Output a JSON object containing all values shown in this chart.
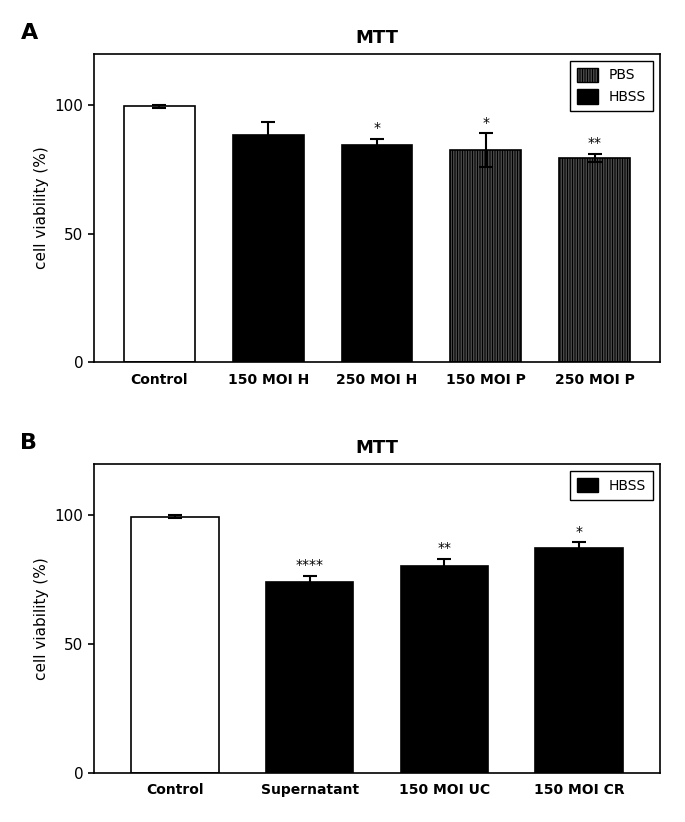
{
  "panel_a": {
    "title": "MTT",
    "label": "A",
    "categories": [
      "Control",
      "150 MOI H",
      "250 MOI H",
      "150 MOI P",
      "250 MOI P"
    ],
    "values": [
      99.5,
      88.5,
      84.5,
      82.5,
      79.5
    ],
    "errors": [
      0.5,
      5.0,
      2.5,
      6.5,
      1.5
    ],
    "facecolors": [
      "white",
      "black",
      "black",
      "white",
      "white"
    ],
    "hatch_patterns": [
      "",
      "",
      "",
      "||||||||||",
      "||||||||||"
    ],
    "significance": [
      "",
      "",
      "*",
      "*",
      "**"
    ],
    "ylabel": "cell viability (%)",
    "ylim": [
      0,
      120
    ],
    "yticks": [
      0,
      50,
      100
    ],
    "legend_items": [
      {
        "label": "PBS",
        "hatch": "||||||||||",
        "facecolor": "white",
        "edgecolor": "black"
      },
      {
        "label": "HBSS",
        "hatch": "",
        "facecolor": "black",
        "edgecolor": "black"
      }
    ]
  },
  "panel_b": {
    "title": "MTT",
    "label": "B",
    "categories": [
      "Control",
      "Supernatant",
      "150 MOI UC",
      "150 MOI CR"
    ],
    "values": [
      99.5,
      74.0,
      80.5,
      87.5
    ],
    "errors": [
      0.5,
      2.5,
      2.5,
      2.0
    ],
    "facecolors": [
      "white",
      "black",
      "black",
      "black"
    ],
    "hatch_patterns": [
      "",
      "",
      "",
      ""
    ],
    "significance": [
      "",
      "****",
      "**",
      "*"
    ],
    "ylabel": "cell viability (%)",
    "ylim": [
      0,
      120
    ],
    "yticks": [
      0,
      50,
      100
    ],
    "legend_items": [
      {
        "label": "HBSS",
        "hatch": "",
        "facecolor": "black",
        "edgecolor": "black"
      }
    ]
  },
  "bar_width": 0.65,
  "figure_bg": "white",
  "axis_bg": "white"
}
